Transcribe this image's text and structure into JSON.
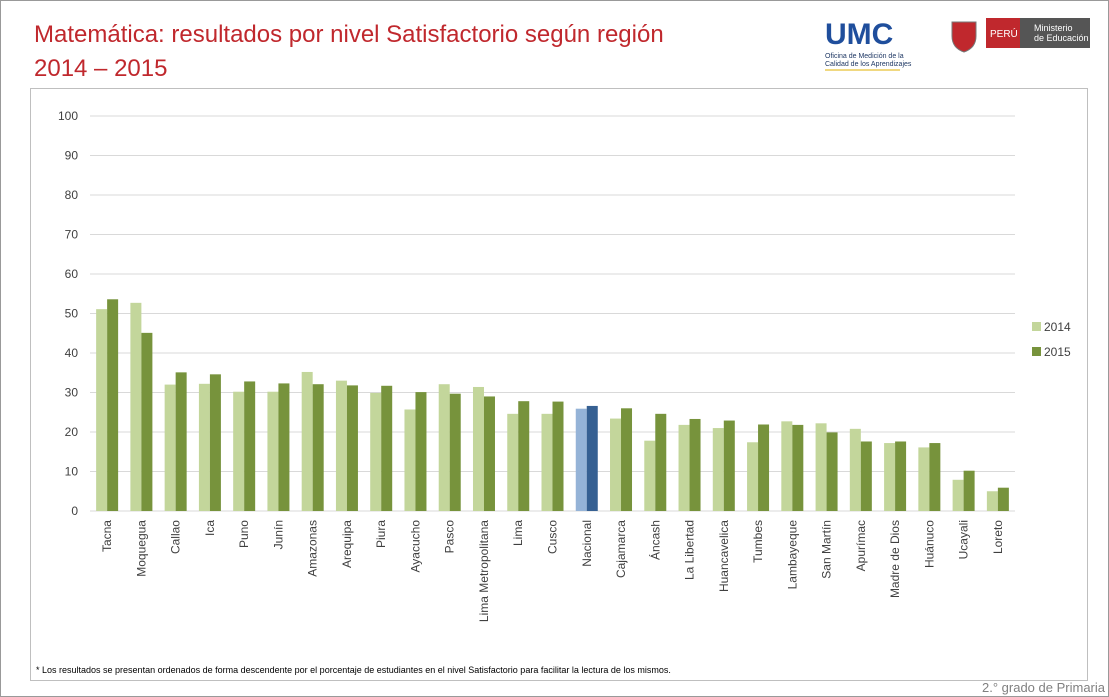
{
  "header": {
    "logo": "UMC",
    "office": [
      "Oficina de Medición de la",
      "Calidad de los Aprendizajes"
    ],
    "country": "PERÚ",
    "ministry": [
      "Ministerio",
      "de Educación"
    ]
  },
  "chart_data": {
    "type": "bar",
    "title": "Matemática: resultados por nivel Satisfactorio según región",
    "subtitle": "2014 – 2015",
    "categories": [
      "Tacna",
      "Moquegua",
      "Callao",
      "Ica",
      "Puno",
      "Junín",
      "Amazonas",
      "Arequipa",
      "Piura",
      "Ayacucho",
      "Pasco",
      "Lima Metropolitana",
      "Lima",
      "Cusco",
      "Nacional",
      "Cajamarca",
      "Áncash",
      "La Libertad",
      "Huancavelica",
      "Tumbes",
      "Lambayeque",
      "San Martín",
      "Apurímac",
      "Madre de Dios",
      "Huánuco",
      "Ucayali",
      "Loreto"
    ],
    "series": [
      {
        "name": "2014",
        "color": "#c3d69b",
        "highlight_color": "#95b3d7",
        "values": [
          51.1,
          52.7,
          32.0,
          32.2,
          30.2,
          30.2,
          35.2,
          33.0,
          29.9,
          25.7,
          32.1,
          31.4,
          24.6,
          24.6,
          25.9,
          23.4,
          17.8,
          21.8,
          21.0,
          17.4,
          22.7,
          22.2,
          20.8,
          17.2,
          16.1,
          7.9,
          5.0
        ]
      },
      {
        "name": "2015",
        "color": "#77933c",
        "highlight_color": "#366092",
        "values": [
          53.6,
          45.1,
          35.1,
          34.6,
          32.8,
          32.3,
          32.1,
          31.8,
          31.7,
          30.1,
          29.7,
          29.0,
          27.8,
          27.7,
          26.6,
          26.0,
          24.6,
          23.3,
          22.9,
          21.9,
          21.8,
          19.9,
          17.6,
          17.6,
          17.2,
          10.2,
          5.9
        ]
      }
    ],
    "highlight_category": "Nacional",
    "ylim": [
      0,
      100
    ],
    "yticks": [
      0,
      10,
      20,
      30,
      40,
      50,
      60,
      70,
      80,
      90,
      100
    ],
    "grid": true,
    "legend": "right",
    "footnote": "* Los resultados se presentan ordenados de forma descendente por el porcentaje de estudiantes en el nivel Satisfactorio para facilitar la lectura de los mismos."
  },
  "footer": "2.° grado de Primaria"
}
